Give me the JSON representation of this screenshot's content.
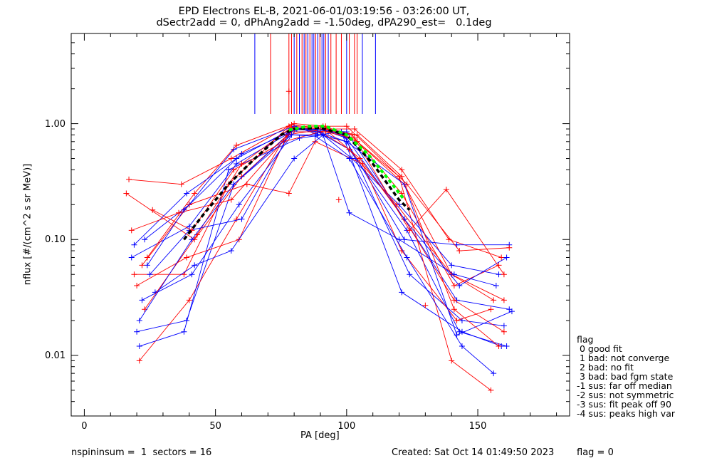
{
  "title_line1": "EPD Electrons EL-B, 2021-06-01/03:19:56 - 03:26:00 UT,",
  "title_line2": "dSectr2add = 0, dPhAng2add = -1.50deg, dPA290_est=   0.1deg",
  "footer": {
    "left": "nspininsum =  1  sectors = 16",
    "created": "Created: Sat Oct 14 01:49:50 2023",
    "flag": "flag = 0"
  },
  "legend": {
    "title": "flag",
    "items": [
      " 0 good fit",
      " 1 bad: not converge",
      " 2 bad: no fit",
      " 3 bad: bad fgm state",
      "-1 sus: far off median",
      "-2 sus: not symmetric",
      "-3 sus: fit peak off 90",
      "-4 sus: peaks high var"
    ]
  },
  "colors": {
    "red": "#ff0000",
    "blue": "#0000ff",
    "black": "#000000",
    "green": "#00ff00"
  },
  "chart_data": {
    "type": "line",
    "xlabel": "PA [deg]",
    "ylabel": "nflux [#/(cm^2 s sr MeV)]",
    "xlim": [
      -5,
      185
    ],
    "ylim": [
      0.003,
      6
    ],
    "yscale": "log",
    "xticks": [
      0,
      50,
      100,
      150
    ],
    "xtick_labels": [
      "0",
      "50",
      "100",
      "150"
    ],
    "yticks": [
      0.01,
      0.1,
      1
    ],
    "ytick_labels": [
      "0.01",
      "0.10",
      "1.00"
    ],
    "series": [
      {
        "color": "red",
        "x": [
          16,
          42,
          60,
          80,
          92,
          104,
          122,
          140,
          160
        ],
        "y": [
          0.25,
          0.1,
          0.35,
          0.9,
          0.92,
          0.7,
          0.3,
          0.05,
          0.03
        ]
      },
      {
        "color": "blue",
        "x": [
          18,
          40,
          58,
          80,
          90,
          100,
          122,
          142,
          162
        ],
        "y": [
          0.07,
          0.13,
          0.45,
          0.88,
          0.9,
          0.75,
          0.15,
          0.03,
          0.025
        ]
      },
      {
        "color": "red",
        "x": [
          19,
          38,
          55,
          78,
          91,
          102,
          121,
          141,
          158
        ],
        "y": [
          0.05,
          0.05,
          0.3,
          0.95,
          0.95,
          0.8,
          0.25,
          0.04,
          0.06
        ]
      },
      {
        "color": "blue",
        "x": [
          20,
          39,
          57,
          79,
          89,
          101,
          123,
          143,
          161
        ],
        "y": [
          0.016,
          0.02,
          0.3,
          0.85,
          0.85,
          0.6,
          0.12,
          0.016,
          0.012
        ]
      },
      {
        "color": "red",
        "x": [
          21,
          40,
          58,
          77,
          92,
          104,
          120,
          140,
          155
        ],
        "y": [
          0.009,
          0.03,
          0.15,
          0.8,
          0.9,
          0.7,
          0.35,
          0.009,
          0.005
        ]
      },
      {
        "color": "blue",
        "x": [
          22,
          41,
          59,
          81,
          90,
          99,
          124,
          144,
          160
        ],
        "y": [
          0.03,
          0.05,
          0.2,
          0.9,
          0.88,
          0.8,
          0.05,
          0.02,
          0.018
        ]
      },
      {
        "color": "red",
        "x": [
          17,
          37,
          56,
          79,
          90,
          103,
          121,
          139,
          159
        ],
        "y": [
          0.33,
          0.3,
          0.5,
          0.98,
          0.9,
          0.9,
          0.4,
          0.1,
          0.07
        ]
      },
      {
        "color": "blue",
        "x": [
          23,
          40,
          57,
          80,
          88,
          100,
          122,
          142,
          162
        ],
        "y": [
          0.1,
          0.2,
          0.6,
          0.95,
          0.82,
          0.7,
          0.1,
          0.09,
          0.09
        ]
      },
      {
        "color": "red",
        "x": [
          20,
          39,
          59,
          78,
          93,
          105,
          122,
          141,
          160
        ],
        "y": [
          0.04,
          0.07,
          0.1,
          0.85,
          0.85,
          0.5,
          0.15,
          0.03,
          0.016
        ]
      },
      {
        "color": "blue",
        "x": [
          21,
          38,
          55,
          82,
          91,
          102,
          120,
          140,
          158
        ],
        "y": [
          0.012,
          0.016,
          0.4,
          0.75,
          0.8,
          0.5,
          0.2,
          0.06,
          0.05
        ]
      },
      {
        "color": "red",
        "x": [
          24,
          42,
          58,
          80,
          92,
          100,
          123,
          143,
          162
        ],
        "y": [
          0.07,
          0.25,
          0.65,
          1.0,
          0.95,
          0.95,
          0.3,
          0.08,
          0.085
        ]
      },
      {
        "color": "blue",
        "x": [
          25,
          40,
          60,
          78,
          89,
          98,
          121,
          144,
          159
        ],
        "y": [
          0.05,
          0.12,
          0.15,
          0.8,
          0.8,
          0.85,
          0.035,
          0.016,
          0.012
        ]
      },
      {
        "color": "red",
        "x": [
          26,
          41,
          57,
          76,
          90,
          101,
          119,
          140,
          156
        ],
        "y": [
          0.18,
          0.12,
          0.4,
          0.7,
          0.85,
          0.6,
          0.2,
          0.05,
          0.03
        ]
      },
      {
        "color": "blue",
        "x": [
          19,
          39,
          58,
          80,
          90,
          100,
          122,
          143,
          161
        ],
        "y": [
          0.09,
          0.25,
          0.5,
          0.92,
          0.88,
          0.85,
          0.15,
          0.04,
          0.07
        ]
      },
      {
        "color": "red",
        "x": [
          22,
          40,
          62,
          78,
          88,
          106,
          121,
          142,
          155
        ],
        "y": [
          0.06,
          0.2,
          0.3,
          0.25,
          0.7,
          0.45,
          0.08,
          0.02,
          0.025
        ]
      },
      {
        "color": "blue",
        "x": [
          27,
          42,
          56,
          80,
          91,
          101,
          120,
          141,
          157
        ],
        "y": [
          0.035,
          0.06,
          0.08,
          0.5,
          0.8,
          0.17,
          0.1,
          0.05,
          0.04
        ]
      },
      {
        "color": "red",
        "x": [
          18,
          36,
          56,
          80,
          92,
          103,
          124,
          138,
          160
        ],
        "y": [
          0.12,
          0.17,
          0.22,
          0.9,
          0.85,
          0.75,
          0.12,
          0.27,
          0.05
        ]
      },
      {
        "color": "blue",
        "x": [
          24,
          38,
          60,
          81,
          89,
          100,
          122,
          142,
          163
        ],
        "y": [
          0.06,
          0.18,
          0.55,
          0.9,
          0.85,
          0.7,
          0.3,
          0.015,
          0.024
        ]
      },
      {
        "color": "red",
        "x": [
          23,
          43,
          60,
          79,
          91,
          104,
          121,
          141,
          158
        ],
        "y": [
          0.025,
          0.11,
          0.45,
          0.93,
          0.9,
          0.8,
          0.35,
          0.025,
          0.012
        ]
      },
      {
        "color": "blue",
        "x": [
          21,
          41,
          57,
          79,
          88,
          101,
          123,
          144,
          156
        ],
        "y": [
          0.02,
          0.1,
          0.3,
          0.8,
          0.78,
          0.5,
          0.07,
          0.012,
          0.007
        ]
      }
    ],
    "red_points": [
      {
        "x": 78,
        "y": 1.9
      },
      {
        "x": 97,
        "y": 0.22
      },
      {
        "x": 130,
        "y": 0.027
      }
    ],
    "median_black": {
      "x": [
        38,
        45,
        55,
        65,
        75,
        80,
        90,
        100,
        110,
        120,
        124
      ],
      "y": [
        0.1,
        0.16,
        0.3,
        0.5,
        0.8,
        0.9,
        0.92,
        0.8,
        0.45,
        0.22,
        0.18
      ]
    },
    "fit_green": {
      "x": [
        78,
        85,
        92,
        100,
        108,
        116,
        122
      ],
      "y": [
        0.88,
        0.95,
        0.95,
        0.8,
        0.55,
        0.33,
        0.22
      ]
    },
    "marker_lines": [
      {
        "x": 65,
        "color": "blue"
      },
      {
        "x": 71,
        "color": "red"
      },
      {
        "x": 78,
        "color": "red"
      },
      {
        "x": 79,
        "color": "red"
      },
      {
        "x": 80,
        "color": "blue"
      },
      {
        "x": 81,
        "color": "red"
      },
      {
        "x": 82,
        "color": "blue"
      },
      {
        "x": 83,
        "color": "red"
      },
      {
        "x": 83.8,
        "color": "blue"
      },
      {
        "x": 84.5,
        "color": "red"
      },
      {
        "x": 85.2,
        "color": "blue"
      },
      {
        "x": 86,
        "color": "red"
      },
      {
        "x": 86.8,
        "color": "blue"
      },
      {
        "x": 87.5,
        "color": "blue"
      },
      {
        "x": 88.2,
        "color": "red"
      },
      {
        "x": 89,
        "color": "blue"
      },
      {
        "x": 89.8,
        "color": "red"
      },
      {
        "x": 90.6,
        "color": "blue"
      },
      {
        "x": 91.3,
        "color": "blue"
      },
      {
        "x": 92,
        "color": "red"
      },
      {
        "x": 93,
        "color": "blue"
      },
      {
        "x": 94,
        "color": "red"
      },
      {
        "x": 96,
        "color": "red"
      },
      {
        "x": 98,
        "color": "red"
      },
      {
        "x": 100,
        "color": "blue"
      },
      {
        "x": 101,
        "color": "red"
      },
      {
        "x": 103,
        "color": "red"
      },
      {
        "x": 104,
        "color": "red"
      },
      {
        "x": 106,
        "color": "blue"
      },
      {
        "x": 111,
        "color": "blue"
      }
    ]
  }
}
